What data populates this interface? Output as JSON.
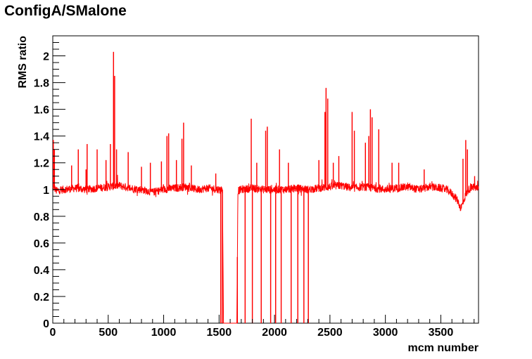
{
  "chart_data": {
    "type": "line",
    "title": "ConfigA/SMalone",
    "xlabel": "mcm number",
    "ylabel": "RMS ratio",
    "xlim": [
      0,
      3840
    ],
    "ylim": [
      0,
      2.15
    ],
    "x_ticks": [
      "0",
      "500",
      "1000",
      "1500",
      "2000",
      "2500",
      "3000",
      "3500"
    ],
    "y_ticks": [
      "0",
      "0.2",
      "0.4",
      "0.6",
      "0.8",
      "1",
      "1.2",
      "1.4",
      "1.6",
      "1.8",
      "2"
    ],
    "x_tick_values": [
      0,
      500,
      1000,
      1500,
      2000,
      2500,
      3000,
      3500
    ],
    "y_tick_values": [
      0,
      0.2,
      0.4,
      0.6,
      0.8,
      1.0,
      1.2,
      1.4,
      1.6,
      1.8,
      2.0
    ],
    "grid": false,
    "series": [
      {
        "color": "#ff0000",
        "baseline": {
          "x": [
            0,
            10,
            30,
            100,
            200,
            300,
            400,
            500,
            600,
            700,
            800,
            900,
            1000,
            1100,
            1200,
            1300,
            1400,
            1500,
            1530,
            1540,
            1660,
            1670,
            1700,
            1800,
            1900,
            2000,
            2100,
            2200,
            2300,
            2400,
            2500,
            2600,
            2700,
            2800,
            2900,
            3000,
            3100,
            3200,
            3300,
            3400,
            3500,
            3550,
            3600,
            3650,
            3680,
            3700,
            3720,
            3750,
            3800,
            3840
          ],
          "y": [
            1.0,
            1.02,
            0.99,
            1.0,
            1.01,
            1.0,
            1.01,
            1.02,
            1.03,
            1.01,
            1.0,
            0.98,
            1.0,
            1.01,
            1.02,
            1.0,
            1.01,
            1.0,
            1.0,
            0.0,
            0.0,
            0.99,
            1.0,
            1.01,
            1.0,
            1.0,
            1.0,
            1.01,
            1.0,
            1.01,
            1.02,
            1.03,
            1.01,
            1.02,
            1.01,
            1.0,
            1.01,
            1.02,
            1.0,
            1.02,
            1.01,
            1.0,
            0.97,
            0.92,
            0.86,
            0.9,
            0.95,
            1.0,
            1.02,
            1.0
          ]
        },
        "spikes": [
          {
            "x": 5,
            "y": 1.37
          },
          {
            "x": 15,
            "y": 1.3
          },
          {
            "x": 170,
            "y": 1.18
          },
          {
            "x": 230,
            "y": 1.3
          },
          {
            "x": 300,
            "y": 1.15
          },
          {
            "x": 310,
            "y": 1.34
          },
          {
            "x": 400,
            "y": 1.3
          },
          {
            "x": 480,
            "y": 1.22
          },
          {
            "x": 520,
            "y": 1.34
          },
          {
            "x": 548,
            "y": 2.03
          },
          {
            "x": 558,
            "y": 1.85
          },
          {
            "x": 575,
            "y": 1.3
          },
          {
            "x": 680,
            "y": 1.28
          },
          {
            "x": 800,
            "y": 1.17
          },
          {
            "x": 880,
            "y": 1.2
          },
          {
            "x": 980,
            "y": 1.21
          },
          {
            "x": 1030,
            "y": 1.4
          },
          {
            "x": 1045,
            "y": 1.42
          },
          {
            "x": 1115,
            "y": 1.22
          },
          {
            "x": 1165,
            "y": 1.38
          },
          {
            "x": 1180,
            "y": 1.5
          },
          {
            "x": 1250,
            "y": 1.18
          },
          {
            "x": 1470,
            "y": 1.12
          },
          {
            "x": 1515,
            "y": 0.0
          },
          {
            "x": 1530,
            "y": 0.0
          },
          {
            "x": 1665,
            "y": 0.0
          },
          {
            "x": 1735,
            "y": 0.0
          },
          {
            "x": 1790,
            "y": 1.53
          },
          {
            "x": 1800,
            "y": 0.0
          },
          {
            "x": 1840,
            "y": 1.2
          },
          {
            "x": 1880,
            "y": 0.0
          },
          {
            "x": 1920,
            "y": 1.44
          },
          {
            "x": 1935,
            "y": 1.47
          },
          {
            "x": 1965,
            "y": 0.0
          },
          {
            "x": 2010,
            "y": 0.0
          },
          {
            "x": 2045,
            "y": 1.3
          },
          {
            "x": 2060,
            "y": 0.0
          },
          {
            "x": 2125,
            "y": 1.2
          },
          {
            "x": 2150,
            "y": 0.0
          },
          {
            "x": 2210,
            "y": 0.0
          },
          {
            "x": 2265,
            "y": 0.0
          },
          {
            "x": 2305,
            "y": 0.0
          },
          {
            "x": 2400,
            "y": 1.22
          },
          {
            "x": 2455,
            "y": 1.58
          },
          {
            "x": 2465,
            "y": 1.76
          },
          {
            "x": 2480,
            "y": 1.68
          },
          {
            "x": 2530,
            "y": 1.2
          },
          {
            "x": 2580,
            "y": 1.25
          },
          {
            "x": 2700,
            "y": 1.58
          },
          {
            "x": 2720,
            "y": 1.44
          },
          {
            "x": 2820,
            "y": 1.35
          },
          {
            "x": 2850,
            "y": 1.4
          },
          {
            "x": 2865,
            "y": 1.6
          },
          {
            "x": 2880,
            "y": 1.54
          },
          {
            "x": 2940,
            "y": 1.45
          },
          {
            "x": 3060,
            "y": 1.2
          },
          {
            "x": 3120,
            "y": 1.2
          },
          {
            "x": 3350,
            "y": 1.15
          },
          {
            "x": 3700,
            "y": 1.23
          },
          {
            "x": 3725,
            "y": 1.37
          },
          {
            "x": 3740,
            "y": 1.3
          },
          {
            "x": 3805,
            "y": 1.1
          }
        ]
      }
    ]
  }
}
